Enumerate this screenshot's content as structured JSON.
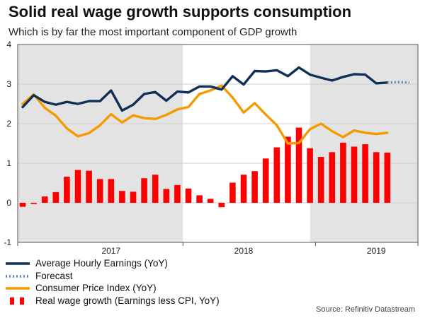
{
  "header": {
    "title": "Solid real wage growth supports consumption",
    "subtitle": "Which is by far the most important component of GDP growth"
  },
  "source": "Source: Refinitiv Datastream",
  "colors": {
    "earnings": "#0f2f57",
    "forecast": "#5a86b8",
    "cpi": "#f59a00",
    "real_wage": "#ff0000",
    "shade": "#e3e3e3",
    "grid": "#cfcfcf"
  },
  "chart_data": {
    "type": "bar+line",
    "ylim": [
      -1,
      4
    ],
    "yticks": [
      "-1",
      "0",
      "1",
      "2",
      "3",
      "4"
    ],
    "x_periods": [
      "2016-10",
      "2016-11",
      "2016-12",
      "2017-01",
      "2017-02",
      "2017-03",
      "2017-04",
      "2017-05",
      "2017-06",
      "2017-07",
      "2017-08",
      "2017-09",
      "2017-10",
      "2017-11",
      "2017-12",
      "2018-01",
      "2018-02",
      "2018-03",
      "2018-04",
      "2018-05",
      "2018-06",
      "2018-07",
      "2018-08",
      "2018-09",
      "2018-10",
      "2018-11",
      "2018-12",
      "2019-01",
      "2019-02",
      "2019-03",
      "2019-04",
      "2019-05",
      "2019-06",
      "2019-07",
      "2019-08",
      "2019-09",
      "2019-10"
    ],
    "year_labels": [
      {
        "label": "2017",
        "index": 8
      },
      {
        "label": "2018",
        "index": 20
      },
      {
        "label": "2019",
        "index": 32
      }
    ],
    "shaded_ranges": [
      [
        0,
        14.5
      ],
      [
        26.5,
        38
      ]
    ],
    "series": [
      {
        "name": "Average Hourly Earnings (YoY)",
        "kind": "line",
        "color_key": "earnings",
        "values": [
          2.42,
          2.72,
          2.55,
          2.48,
          2.55,
          2.5,
          2.57,
          2.57,
          2.84,
          2.33,
          2.48,
          2.75,
          2.8,
          2.58,
          2.81,
          2.79,
          2.94,
          2.94,
          2.86,
          3.2,
          2.99,
          3.33,
          3.32,
          3.35,
          3.2,
          3.42,
          3.24,
          3.16,
          3.09,
          3.18,
          3.25,
          3.24,
          3.02,
          3.04
        ]
      },
      {
        "name": "Forecast",
        "kind": "dotted",
        "color_key": "forecast",
        "start_index": 33,
        "values": [
          3.04,
          3.05,
          3.04
        ]
      },
      {
        "name": "Consumer Price Index (YoY)",
        "kind": "line",
        "color_key": "cpi",
        "values": [
          2.5,
          2.74,
          2.4,
          2.2,
          1.88,
          1.68,
          1.76,
          1.96,
          2.24,
          2.03,
          2.21,
          2.14,
          2.12,
          2.22,
          2.36,
          2.42,
          2.75,
          2.84,
          2.96,
          2.66,
          2.28,
          2.52,
          2.23,
          1.96,
          1.5,
          1.51,
          1.86,
          2.0,
          1.81,
          1.66,
          1.83,
          1.77,
          1.74,
          1.77
        ]
      },
      {
        "name": "Real wage growth (Earnings less CPI, YoY)",
        "kind": "bar",
        "color_key": "real_wage",
        "values": [
          -0.1,
          -0.03,
          0.16,
          0.27,
          0.66,
          0.83,
          0.81,
          0.6,
          0.6,
          0.3,
          0.28,
          0.62,
          0.71,
          0.35,
          0.45,
          0.36,
          0.19,
          0.1,
          -0.11,
          0.51,
          0.71,
          0.8,
          1.12,
          1.4,
          1.67,
          1.9,
          1.38,
          1.16,
          1.28,
          1.52,
          1.42,
          1.48,
          1.28,
          1.27
        ]
      }
    ]
  }
}
